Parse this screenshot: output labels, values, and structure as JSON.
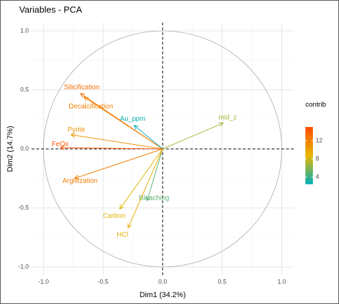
{
  "chart_data": {
    "type": "pca_variables",
    "title": "Variables - PCA",
    "x_label": "Dim1 (34.2%)",
    "y_label": "Dim2 (14.7%)",
    "xlim": [
      -1.1,
      1.1
    ],
    "ylim": [
      -1.07,
      1.07
    ],
    "xticks": [
      {
        "value": -1,
        "label": "-1.0"
      },
      {
        "value": -0.5,
        "label": "-0.5"
      },
      {
        "value": 0,
        "label": "0.0"
      },
      {
        "value": 0.5,
        "label": "0.5"
      },
      {
        "value": 1,
        "label": "1.0"
      }
    ],
    "yticks": [
      {
        "value": -1,
        "label": "-1.0"
      },
      {
        "value": -0.5,
        "label": "-0.5"
      },
      {
        "value": 0,
        "label": "0.0"
      },
      {
        "value": 0.5,
        "label": "0.5"
      },
      {
        "value": 1,
        "label": "1.0"
      }
    ],
    "grid": true,
    "variables": [
      {
        "name": "Silicification",
        "x": -0.69,
        "y": 0.47,
        "contrib": 13
      },
      {
        "name": "Decalcification",
        "x": -0.66,
        "y": 0.44,
        "contrib": 12
      },
      {
        "name": "Au_ppm",
        "x": -0.24,
        "y": 0.2,
        "contrib": 2.8
      },
      {
        "name": "mid_z",
        "x": 0.51,
        "y": 0.22,
        "contrib": 7
      },
      {
        "name": "Pyrite",
        "x": -0.77,
        "y": 0.12,
        "contrib": 11
      },
      {
        "name": "FeOx",
        "x": -0.86,
        "y": 0.01,
        "contrib": 14.5
      },
      {
        "name": "Argillization",
        "x": -0.74,
        "y": -0.25,
        "contrib": 12
      },
      {
        "name": "Bleaching",
        "x": -0.13,
        "y": -0.44,
        "contrib": 5
      },
      {
        "name": "Carbon",
        "x": -0.36,
        "y": -0.51,
        "contrib": 8.5
      },
      {
        "name": "HCl",
        "x": -0.29,
        "y": -0.67,
        "contrib": 9.5
      }
    ],
    "legend_title": "contrib",
    "clim": [
      2.5,
      15
    ],
    "legend_ticks": [
      4,
      8,
      12
    ],
    "gradient": [
      "#00AFBB",
      "#E7B800",
      "#FC4E07"
    ]
  }
}
